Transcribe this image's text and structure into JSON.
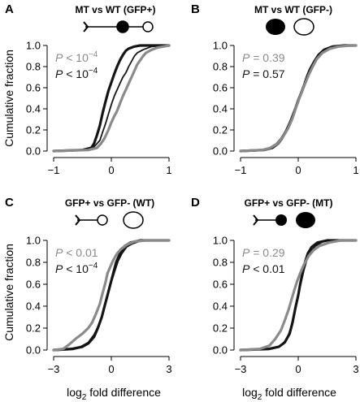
{
  "figure": {
    "ylabel": "Cumulative fraction",
    "xlabel_prefix": "log",
    "xlabel_sub": "2",
    "xlabel_suffix": " fold difference"
  },
  "colors": {
    "black": "#141414",
    "gray": "#8a8a8a"
  },
  "chart_data": [
    {
      "panel": "A",
      "type": "line",
      "title": "MT vs WT (GFP+)",
      "glyphs": [
        "gfp-plus-mt-icon",
        "gfp-plus-wt-icon"
      ],
      "xlim": [
        -1,
        1
      ],
      "xticks": [
        -1,
        0,
        1
      ],
      "ylim": [
        0,
        1
      ],
      "yticks": [
        "0.0",
        "0.2",
        "0.4",
        "0.6",
        "0.8",
        "1.0"
      ],
      "pvalues": [
        {
          "text": "P < 10",
          "exp": "-4",
          "color": "gray"
        },
        {
          "text": "P < 10",
          "exp": "-4",
          "color": "black"
        }
      ],
      "series": [
        {
          "color": "black",
          "width": 3.2,
          "points": [
            [
              -1,
              0
            ],
            [
              -0.5,
              0.01
            ],
            [
              -0.35,
              0.03
            ],
            [
              -0.3,
              0.07
            ],
            [
              -0.25,
              0.15
            ],
            [
              -0.2,
              0.24
            ],
            [
              -0.15,
              0.36
            ],
            [
              -0.1,
              0.47
            ],
            [
              -0.05,
              0.57
            ],
            [
              0,
              0.65
            ],
            [
              0.05,
              0.73
            ],
            [
              0.1,
              0.8
            ],
            [
              0.15,
              0.86
            ],
            [
              0.2,
              0.91
            ],
            [
              0.25,
              0.95
            ],
            [
              0.3,
              0.97
            ],
            [
              0.4,
              0.99
            ],
            [
              0.5,
              1.0
            ],
            [
              1,
              1.0
            ]
          ]
        },
        {
          "color": "black",
          "width": 1.8,
          "points": [
            [
              -1,
              0
            ],
            [
              -0.45,
              0.01
            ],
            [
              -0.3,
              0.04
            ],
            [
              -0.2,
              0.1
            ],
            [
              -0.15,
              0.18
            ],
            [
              -0.1,
              0.26
            ],
            [
              -0.05,
              0.35
            ],
            [
              0,
              0.44
            ],
            [
              0.05,
              0.52
            ],
            [
              0.1,
              0.58
            ],
            [
              0.15,
              0.64
            ],
            [
              0.2,
              0.7
            ],
            [
              0.25,
              0.74
            ],
            [
              0.3,
              0.8
            ],
            [
              0.35,
              0.85
            ],
            [
              0.4,
              0.9
            ],
            [
              0.45,
              0.93
            ],
            [
              0.55,
              0.96
            ],
            [
              0.7,
              0.99
            ],
            [
              0.9,
              1.0
            ],
            [
              1,
              1.0
            ]
          ]
        },
        {
          "color": "gray",
          "width": 3.2,
          "points": [
            [
              -1,
              0
            ],
            [
              -0.4,
              0.01
            ],
            [
              -0.25,
              0.03
            ],
            [
              -0.18,
              0.07
            ],
            [
              -0.12,
              0.12
            ],
            [
              -0.05,
              0.2
            ],
            [
              0,
              0.27
            ],
            [
              0.05,
              0.33
            ],
            [
              0.1,
              0.38
            ],
            [
              0.15,
              0.45
            ],
            [
              0.2,
              0.52
            ],
            [
              0.25,
              0.58
            ],
            [
              0.3,
              0.64
            ],
            [
              0.35,
              0.7
            ],
            [
              0.4,
              0.76
            ],
            [
              0.45,
              0.82
            ],
            [
              0.5,
              0.86
            ],
            [
              0.55,
              0.9
            ],
            [
              0.6,
              0.93
            ],
            [
              0.7,
              0.96
            ],
            [
              0.8,
              0.98
            ],
            [
              0.9,
              0.99
            ],
            [
              1,
              1.0
            ]
          ]
        }
      ]
    },
    {
      "panel": "B",
      "type": "line",
      "title": "MT vs WT (GFP-)",
      "glyphs": [
        "gfp-minus-mt-icon",
        "gfp-minus-wt-icon"
      ],
      "xlim": [
        -1,
        1
      ],
      "xticks": [
        -1,
        0,
        1
      ],
      "ylim": [
        0,
        1
      ],
      "yticks": [
        "0.0",
        "0.2",
        "0.4",
        "0.6",
        "0.8",
        "1.0"
      ],
      "pvalues": [
        {
          "text": "P = 0.39",
          "exp": "",
          "color": "gray"
        },
        {
          "text": "P = 0.57",
          "exp": "",
          "color": "black"
        }
      ],
      "series": [
        {
          "color": "black",
          "width": 3.2,
          "points": [
            [
              -1,
              0
            ],
            [
              -0.6,
              0.01
            ],
            [
              -0.45,
              0.03
            ],
            [
              -0.35,
              0.07
            ],
            [
              -0.28,
              0.12
            ],
            [
              -0.2,
              0.2
            ],
            [
              -0.12,
              0.3
            ],
            [
              -0.05,
              0.4
            ],
            [
              0,
              0.48
            ],
            [
              0.05,
              0.55
            ],
            [
              0.1,
              0.62
            ],
            [
              0.15,
              0.7
            ],
            [
              0.2,
              0.77
            ],
            [
              0.28,
              0.85
            ],
            [
              0.35,
              0.91
            ],
            [
              0.45,
              0.96
            ],
            [
              0.6,
              0.99
            ],
            [
              0.8,
              1.0
            ],
            [
              1,
              1.0
            ]
          ]
        },
        {
          "color": "black",
          "width": 1.8,
          "points": [
            [
              -1,
              0
            ],
            [
              -0.65,
              0.01
            ],
            [
              -0.5,
              0.03
            ],
            [
              -0.38,
              0.07
            ],
            [
              -0.3,
              0.12
            ],
            [
              -0.22,
              0.19
            ],
            [
              -0.14,
              0.28
            ],
            [
              -0.07,
              0.38
            ],
            [
              -0.02,
              0.46
            ],
            [
              0.04,
              0.54
            ],
            [
              0.1,
              0.62
            ],
            [
              0.16,
              0.7
            ],
            [
              0.22,
              0.78
            ],
            [
              0.3,
              0.86
            ],
            [
              0.38,
              0.92
            ],
            [
              0.48,
              0.96
            ],
            [
              0.62,
              0.99
            ],
            [
              0.85,
              1.0
            ],
            [
              1,
              1.0
            ]
          ]
        },
        {
          "color": "gray",
          "width": 3.2,
          "points": [
            [
              -1,
              0
            ],
            [
              -0.62,
              0.01
            ],
            [
              -0.48,
              0.03
            ],
            [
              -0.36,
              0.07
            ],
            [
              -0.27,
              0.13
            ],
            [
              -0.18,
              0.21
            ],
            [
              -0.1,
              0.31
            ],
            [
              -0.04,
              0.41
            ],
            [
              0.02,
              0.5
            ],
            [
              0.07,
              0.57
            ],
            [
              0.12,
              0.64
            ],
            [
              0.18,
              0.72
            ],
            [
              0.25,
              0.8
            ],
            [
              0.32,
              0.87
            ],
            [
              0.42,
              0.93
            ],
            [
              0.55,
              0.97
            ],
            [
              0.7,
              0.99
            ],
            [
              0.9,
              1.0
            ],
            [
              1,
              1.0
            ]
          ]
        }
      ]
    },
    {
      "panel": "C",
      "type": "line",
      "title": "GFP+ vs GFP- (WT)",
      "glyphs": [
        "gfp-plus-wt-icon",
        "gfp-minus-wt-icon"
      ],
      "xlim": [
        -3,
        3
      ],
      "xticks": [
        -3,
        0,
        3
      ],
      "ylim": [
        0,
        1
      ],
      "yticks": [
        "0.0",
        "0.2",
        "0.4",
        "0.6",
        "0.8",
        "1.0"
      ],
      "pvalues": [
        {
          "text": "P < 0.01",
          "exp": "",
          "color": "gray"
        },
        {
          "text": "P < 10",
          "exp": "-4",
          "color": "black"
        }
      ],
      "series": [
        {
          "color": "black",
          "width": 3.2,
          "points": [
            [
              -3,
              0
            ],
            [
              -2,
              0.01
            ],
            [
              -1.5,
              0.03
            ],
            [
              -1.2,
              0.06
            ],
            [
              -0.9,
              0.12
            ],
            [
              -0.7,
              0.2
            ],
            [
              -0.5,
              0.3
            ],
            [
              -0.35,
              0.4
            ],
            [
              -0.2,
              0.5
            ],
            [
              -0.05,
              0.6
            ],
            [
              0.1,
              0.7
            ],
            [
              0.25,
              0.8
            ],
            [
              0.45,
              0.88
            ],
            [
              0.7,
              0.95
            ],
            [
              1.0,
              0.98
            ],
            [
              1.5,
              1.0
            ],
            [
              3,
              1.0
            ]
          ]
        },
        {
          "color": "black",
          "width": 1.8,
          "points": [
            [
              -3,
              0
            ],
            [
              -2.2,
              0.01
            ],
            [
              -1.6,
              0.03
            ],
            [
              -1.2,
              0.07
            ],
            [
              -0.9,
              0.14
            ],
            [
              -0.65,
              0.23
            ],
            [
              -0.45,
              0.33
            ],
            [
              -0.28,
              0.44
            ],
            [
              -0.12,
              0.54
            ],
            [
              0.02,
              0.63
            ],
            [
              0.18,
              0.72
            ],
            [
              0.35,
              0.81
            ],
            [
              0.55,
              0.88
            ],
            [
              0.8,
              0.94
            ],
            [
              1.1,
              0.97
            ],
            [
              1.6,
              1.0
            ],
            [
              3,
              1.0
            ]
          ]
        },
        {
          "color": "gray",
          "width": 3.2,
          "points": [
            [
              -3,
              0
            ],
            [
              -2.5,
              0.01
            ],
            [
              -2.2,
              0.05
            ],
            [
              -2.0,
              0.08
            ],
            [
              -1.8,
              0.11
            ],
            [
              -1.5,
              0.15
            ],
            [
              -1.2,
              0.2
            ],
            [
              -1.0,
              0.25
            ],
            [
              -0.8,
              0.33
            ],
            [
              -0.6,
              0.42
            ],
            [
              -0.45,
              0.52
            ],
            [
              -0.3,
              0.62
            ],
            [
              -0.2,
              0.7
            ],
            [
              -0.05,
              0.76
            ],
            [
              0.1,
              0.82
            ],
            [
              0.3,
              0.88
            ],
            [
              0.5,
              0.92
            ],
            [
              0.8,
              0.96
            ],
            [
              1.2,
              0.99
            ],
            [
              1.8,
              1.0
            ],
            [
              3,
              1.0
            ]
          ]
        }
      ]
    },
    {
      "panel": "D",
      "type": "line",
      "title": "GFP+ vs GFP- (MT)",
      "glyphs": [
        "gfp-plus-mt-icon",
        "gfp-minus-mt-icon"
      ],
      "xlim": [
        -3,
        3
      ],
      "xticks": [
        -3,
        0,
        3
      ],
      "ylim": [
        0,
        1
      ],
      "yticks": [
        "0.0",
        "0.2",
        "0.4",
        "0.6",
        "0.8",
        "1.0"
      ],
      "pvalues": [
        {
          "text": "P = 0.29",
          "exp": "",
          "color": "gray"
        },
        {
          "text": "P < 0.01",
          "exp": "",
          "color": "black"
        }
      ],
      "series": [
        {
          "color": "black",
          "width": 3.2,
          "points": [
            [
              -3,
              0
            ],
            [
              -1.5,
              0.01
            ],
            [
              -1.0,
              0.03
            ],
            [
              -0.7,
              0.07
            ],
            [
              -0.45,
              0.15
            ],
            [
              -0.3,
              0.25
            ],
            [
              -0.15,
              0.38
            ],
            [
              0,
              0.5
            ],
            [
              0.1,
              0.6
            ],
            [
              0.22,
              0.7
            ],
            [
              0.35,
              0.8
            ],
            [
              0.5,
              0.88
            ],
            [
              0.7,
              0.94
            ],
            [
              1.0,
              0.98
            ],
            [
              1.5,
              1.0
            ],
            [
              3,
              1.0
            ]
          ]
        },
        {
          "color": "black",
          "width": 1.8,
          "points": [
            [
              -3,
              0
            ],
            [
              -1.4,
              0.01
            ],
            [
              -0.9,
              0.04
            ],
            [
              -0.6,
              0.1
            ],
            [
              -0.4,
              0.19
            ],
            [
              -0.25,
              0.3
            ],
            [
              -0.1,
              0.42
            ],
            [
              0.05,
              0.54
            ],
            [
              0.18,
              0.64
            ],
            [
              0.3,
              0.73
            ],
            [
              0.45,
              0.82
            ],
            [
              0.65,
              0.9
            ],
            [
              0.9,
              0.95
            ],
            [
              1.3,
              0.99
            ],
            [
              1.8,
              1.0
            ],
            [
              3,
              1.0
            ]
          ]
        },
        {
          "color": "gray",
          "width": 3.2,
          "points": [
            [
              -3,
              0
            ],
            [
              -2.0,
              0.01
            ],
            [
              -1.5,
              0.04
            ],
            [
              -1.2,
              0.1
            ],
            [
              -0.9,
              0.18
            ],
            [
              -0.7,
              0.27
            ],
            [
              -0.5,
              0.37
            ],
            [
              -0.35,
              0.46
            ],
            [
              -0.2,
              0.55
            ],
            [
              -0.05,
              0.63
            ],
            [
              0.1,
              0.7
            ],
            [
              0.3,
              0.78
            ],
            [
              0.55,
              0.86
            ],
            [
              0.8,
              0.91
            ],
            [
              1.1,
              0.95
            ],
            [
              1.6,
              0.98
            ],
            [
              2.2,
              1.0
            ],
            [
              3,
              1.0
            ]
          ]
        }
      ]
    }
  ]
}
